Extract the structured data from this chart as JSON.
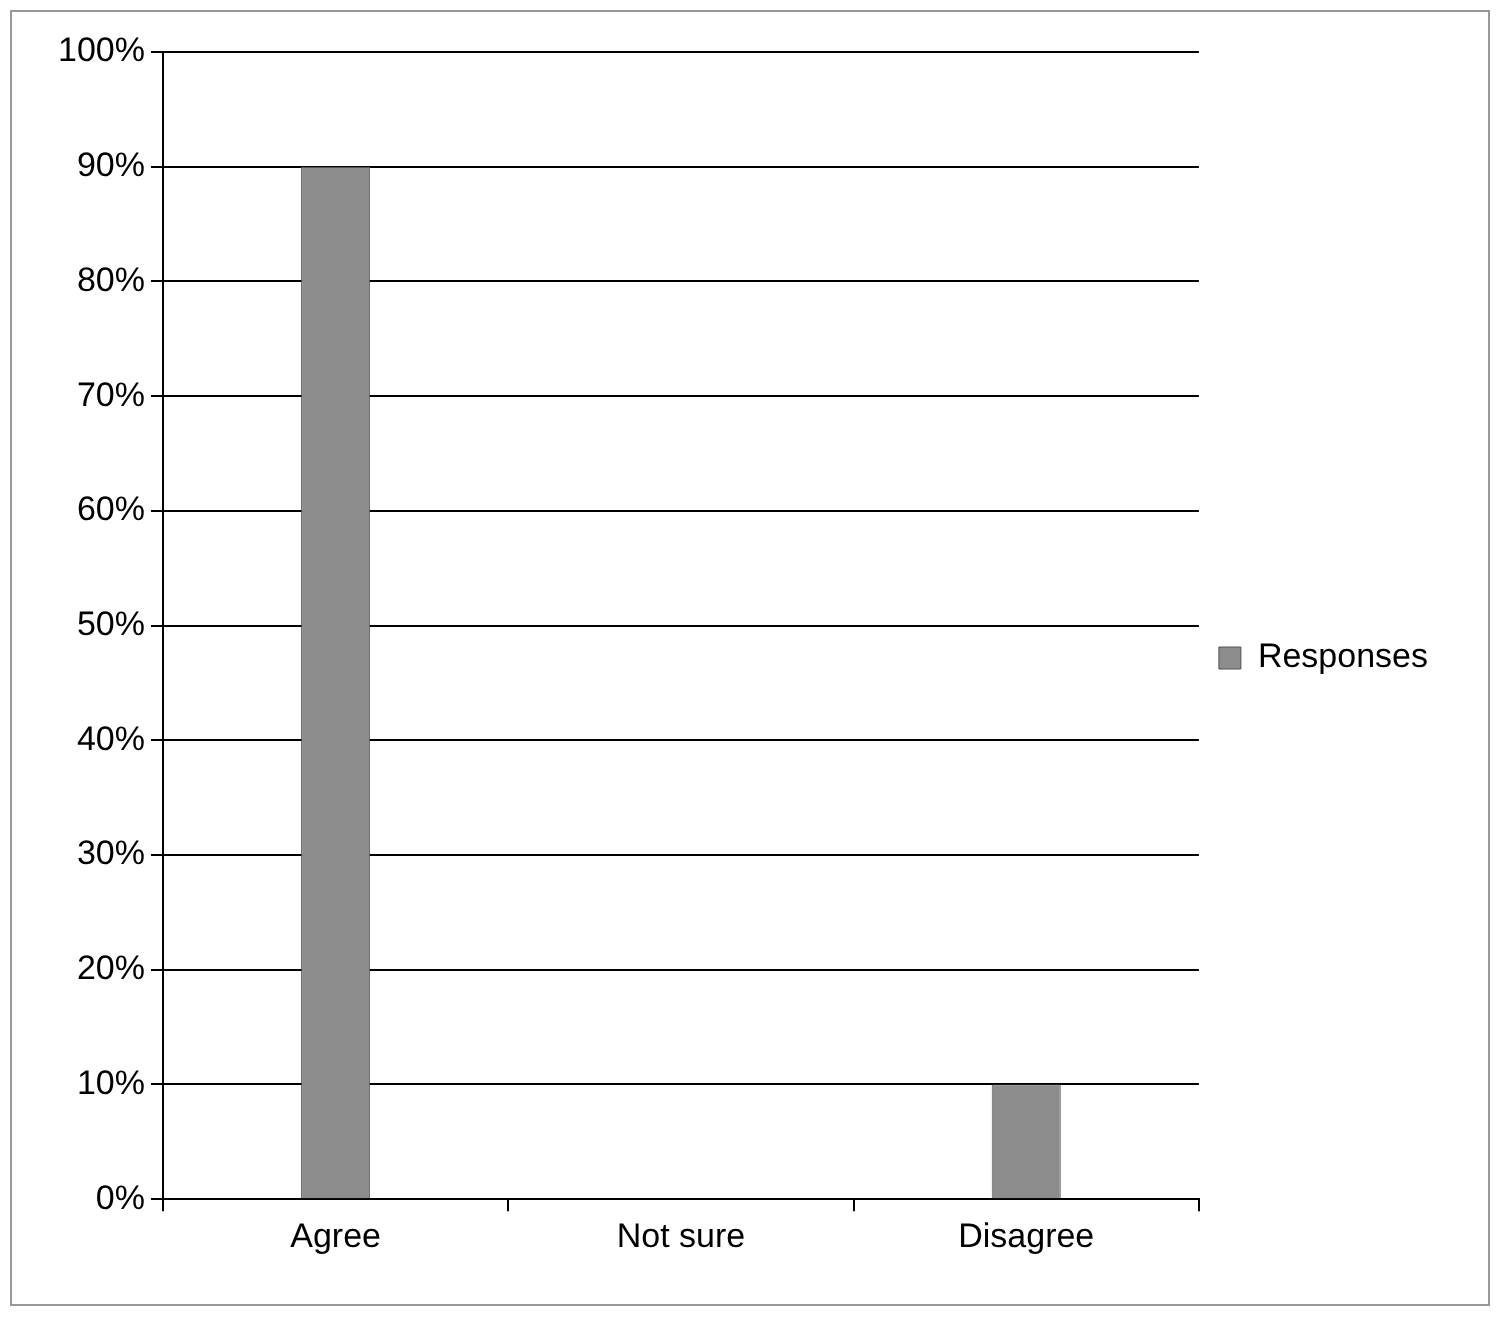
{
  "chart_data": {
    "type": "bar",
    "categories": [
      "Agree",
      "Not sure",
      "Disagree"
    ],
    "series": [
      {
        "name": "Responses",
        "color": "#8c8c8c",
        "values": [
          90,
          0,
          10
        ]
      }
    ],
    "ylim": [
      0,
      100
    ],
    "yticks": [
      {
        "value": 0,
        "label": "0%"
      },
      {
        "value": 10,
        "label": "10%"
      },
      {
        "value": 20,
        "label": "20%"
      },
      {
        "value": 30,
        "label": "30%"
      },
      {
        "value": 40,
        "label": "40%"
      },
      {
        "value": 50,
        "label": "50%"
      },
      {
        "value": 60,
        "label": "60%"
      },
      {
        "value": 70,
        "label": "70%"
      },
      {
        "value": 80,
        "label": "80%"
      },
      {
        "value": 90,
        "label": "90%"
      },
      {
        "value": 100,
        "label": "100%"
      }
    ],
    "grid": "y",
    "legend": "right"
  }
}
